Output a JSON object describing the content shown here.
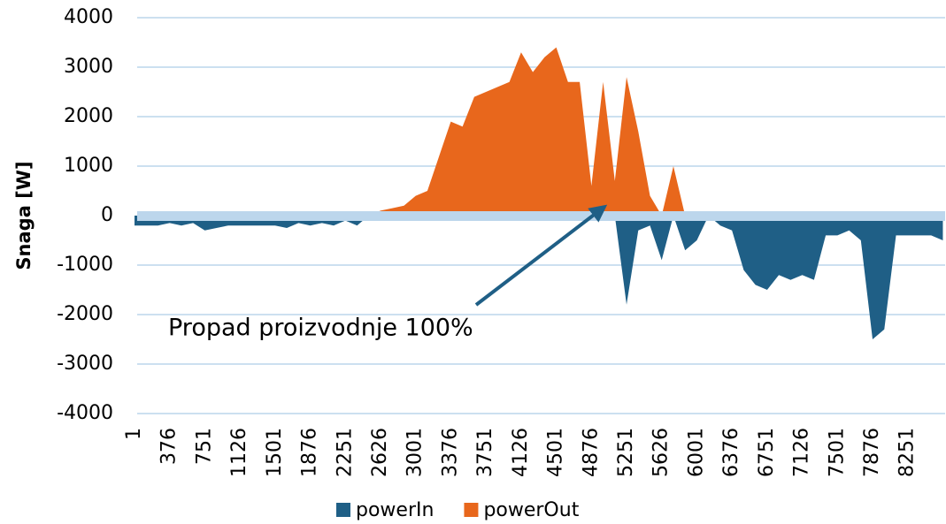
{
  "chart_data": {
    "type": "area",
    "y_label": "Snaga [W]",
    "annotation": "Propad proizvodnje 100%",
    "x": [
      1,
      126,
      251,
      376,
      501,
      626,
      751,
      876,
      1001,
      1126,
      1251,
      1376,
      1501,
      1626,
      1751,
      1876,
      2001,
      2126,
      2251,
      2376,
      2501,
      2626,
      2751,
      2876,
      3001,
      3126,
      3251,
      3376,
      3501,
      3626,
      3751,
      3876,
      4001,
      4126,
      4251,
      4376,
      4501,
      4626,
      4751,
      4876,
      5001,
      5126,
      5251,
      5376,
      5501,
      5626,
      5751,
      5876,
      6001,
      6126,
      6251,
      6376,
      6501,
      6626,
      6751,
      6876,
      7001,
      7126,
      7251,
      7376,
      7501,
      7626,
      7751,
      7876,
      8001,
      8126,
      8251,
      8376,
      8501,
      8626
    ],
    "series": [
      {
        "name": "powerIn",
        "color": "#1f5f86",
        "values": [
          -200,
          -200,
          -200,
          -150,
          -200,
          -150,
          -300,
          -250,
          -200,
          -200,
          -200,
          -200,
          -200,
          -250,
          -150,
          -200,
          -150,
          -200,
          -100,
          -200,
          0,
          0,
          0,
          0,
          0,
          0,
          0,
          0,
          0,
          0,
          0,
          0,
          0,
          0,
          0,
          0,
          0,
          0,
          0,
          0,
          0,
          0,
          -1800,
          -300,
          -200,
          -900,
          0,
          -700,
          -500,
          0,
          -200,
          -300,
          -1100,
          -1400,
          -1500,
          -1200,
          -1300,
          -1200,
          -1300,
          -400,
          -400,
          -300,
          -500,
          -2500,
          -2300,
          -400,
          -400,
          -400,
          -400,
          -500
        ]
      },
      {
        "name": "powerOut",
        "color": "#e8671c",
        "values": [
          0,
          0,
          0,
          0,
          0,
          0,
          0,
          0,
          0,
          0,
          0,
          0,
          0,
          0,
          0,
          0,
          0,
          0,
          0,
          0,
          0,
          100,
          150,
          200,
          400,
          500,
          1200,
          1900,
          1800,
          2400,
          2500,
          2600,
          2700,
          3300,
          2900,
          3200,
          3400,
          2700,
          2700,
          600,
          2700,
          700,
          2800,
          1700,
          400,
          0,
          1000,
          0,
          0,
          0,
          0,
          0,
          0,
          0,
          0,
          0,
          0,
          0,
          0,
          0,
          0,
          0,
          0,
          0,
          0,
          0,
          0,
          0,
          0,
          0
        ]
      }
    ],
    "xlim": [
      1,
      8650
    ],
    "xticks": [
      1,
      376,
      751,
      1126,
      1501,
      1876,
      2251,
      2626,
      3001,
      3376,
      3751,
      4126,
      4501,
      4876,
      5251,
      5626,
      6001,
      6376,
      6751,
      7126,
      7501,
      7876,
      8251
    ],
    "ylim": [
      -4000,
      4000
    ],
    "yticks": [
      -4000,
      -3000,
      -2000,
      -1000,
      0,
      1000,
      2000,
      3000,
      4000
    ],
    "grid": true
  }
}
